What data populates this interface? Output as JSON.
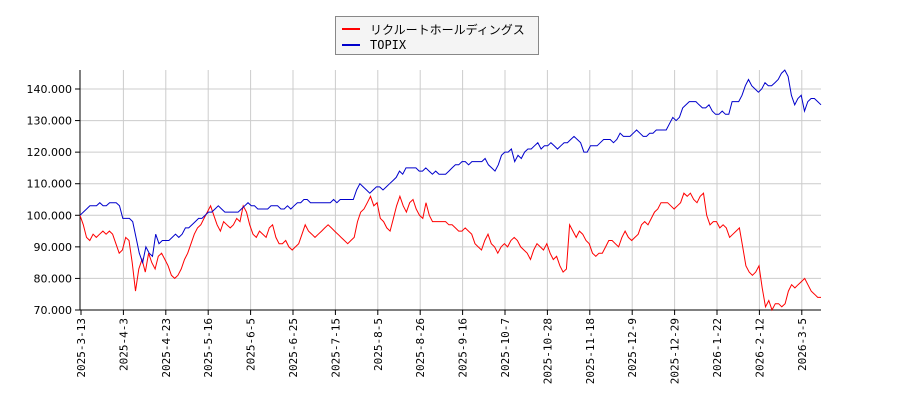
{
  "legend": {
    "items": [
      {
        "label": "リクルートホールディングス",
        "color": "#ff0000"
      },
      {
        "label": "TOPIX",
        "color": "#0000cc"
      }
    ]
  },
  "chart_data": {
    "type": "line",
    "title": "",
    "xlabel": "",
    "ylabel": "",
    "ylim": [
      70,
      146
    ],
    "grid": true,
    "legend_position": "top-center",
    "y_ticks": [
      "70.000",
      "80.000",
      "90.000",
      "100.000",
      "110.000",
      "120.000",
      "130.000",
      "140.000"
    ],
    "x_ticks": [
      "2025-3-13",
      "2025-4-3",
      "2025-4-23",
      "2025-5-16",
      "2025-6-5",
      "2025-6-25",
      "2025-7-15",
      "2025-8-5",
      "2025-8-26",
      "2025-9-16",
      "2025-10-7",
      "2025-10-28",
      "2025-11-18",
      "2025-12-9",
      "2025-12-29",
      "2026-1-22",
      "2026-2-12",
      "2026-3-5"
    ],
    "series": [
      {
        "name": "リクルートホールディングス",
        "color": "#ff0000",
        "values": [
          100,
          97,
          93,
          92,
          94,
          93,
          94,
          95,
          94,
          95,
          94,
          91,
          88,
          89,
          93,
          92,
          85,
          76,
          83,
          86,
          82,
          88,
          85,
          83,
          87,
          88,
          86,
          84,
          81,
          80,
          81,
          83,
          86,
          88,
          91,
          94,
          96,
          97,
          99,
          101,
          103,
          100,
          97,
          95,
          98,
          97,
          96,
          97,
          99,
          98,
          103,
          101,
          97,
          94,
          93,
          95,
          94,
          93,
          96,
          97,
          93,
          91,
          91,
          92,
          90,
          89,
          90,
          91,
          94,
          97,
          95,
          94,
          93,
          94,
          95,
          96,
          97,
          96,
          95,
          94,
          93,
          92,
          91,
          92,
          93,
          98,
          101,
          102,
          104,
          106,
          103,
          104,
          99,
          98,
          96,
          95,
          99,
          103,
          106,
          103,
          101,
          104,
          105,
          102,
          100,
          99,
          104,
          100,
          98,
          98,
          98,
          98,
          98,
          97,
          97,
          96,
          95,
          95,
          96,
          95,
          94,
          91,
          90,
          89,
          92,
          94,
          91,
          90,
          88,
          90,
          91,
          90,
          92,
          93,
          92,
          90,
          89,
          88,
          86,
          89,
          91,
          90,
          89,
          91,
          88,
          86,
          87,
          84,
          82,
          83,
          97,
          95,
          93,
          95,
          94,
          92,
          91,
          88,
          87,
          88,
          88,
          90,
          92,
          92,
          91,
          90,
          93,
          95,
          93,
          92,
          93,
          94,
          97,
          98,
          97,
          99,
          101,
          102,
          104,
          104,
          104,
          103,
          102,
          103,
          104,
          107,
          106,
          107,
          105,
          104,
          106,
          107,
          100,
          97,
          98,
          98,
          96,
          97,
          96,
          93,
          94,
          95,
          96,
          90,
          84,
          82,
          81,
          82,
          84,
          77,
          71,
          73,
          70,
          72,
          72,
          71,
          72,
          76,
          78,
          77,
          78,
          79,
          80,
          78,
          76,
          75,
          74,
          74
        ]
      },
      {
        "name": "TOPIX",
        "color": "#0000cc",
        "values": [
          100,
          101,
          102,
          103,
          103,
          103,
          104,
          103,
          103,
          104,
          104,
          104,
          103,
          99,
          99,
          99,
          98,
          93,
          88,
          85,
          90,
          88,
          87,
          94,
          91,
          92,
          92,
          92,
          93,
          94,
          93,
          94,
          96,
          96,
          97,
          98,
          99,
          99,
          100,
          101,
          101,
          102,
          103,
          102,
          101,
          101,
          101,
          101,
          101,
          102,
          103,
          104,
          103,
          103,
          102,
          102,
          102,
          102,
          103,
          103,
          103,
          102,
          102,
          103,
          102,
          103,
          104,
          104,
          105,
          105,
          104,
          104,
          104,
          104,
          104,
          104,
          104,
          105,
          104,
          105,
          105,
          105,
          105,
          105,
          108,
          110,
          109,
          108,
          107,
          108,
          109,
          109,
          108,
          109,
          110,
          111,
          112,
          114,
          113,
          115,
          115,
          115,
          115,
          114,
          114,
          115,
          114,
          113,
          114,
          113,
          113,
          113,
          114,
          115,
          116,
          116,
          117,
          117,
          116,
          117,
          117,
          117,
          117,
          118,
          116,
          115,
          114,
          116,
          119,
          120,
          120,
          121,
          117,
          119,
          118,
          120,
          121,
          121,
          122,
          123,
          121,
          122,
          122,
          123,
          122,
          121,
          122,
          123,
          123,
          124,
          125,
          124,
          123,
          120,
          120,
          122,
          122,
          122,
          123,
          124,
          124,
          124,
          123,
          124,
          126,
          125,
          125,
          125,
          126,
          127,
          126,
          125,
          125,
          126,
          126,
          127,
          127,
          127,
          127,
          129,
          131,
          130,
          131,
          134,
          135,
          136,
          136,
          136,
          135,
          134,
          134,
          135,
          133,
          132,
          132,
          133,
          132,
          132,
          136,
          136,
          136,
          138,
          141,
          143,
          141,
          140,
          139,
          140,
          142,
          141,
          141,
          142,
          143,
          145,
          146,
          144,
          138,
          135,
          137,
          138,
          133,
          136,
          137,
          137,
          136,
          135
        ]
      }
    ]
  }
}
